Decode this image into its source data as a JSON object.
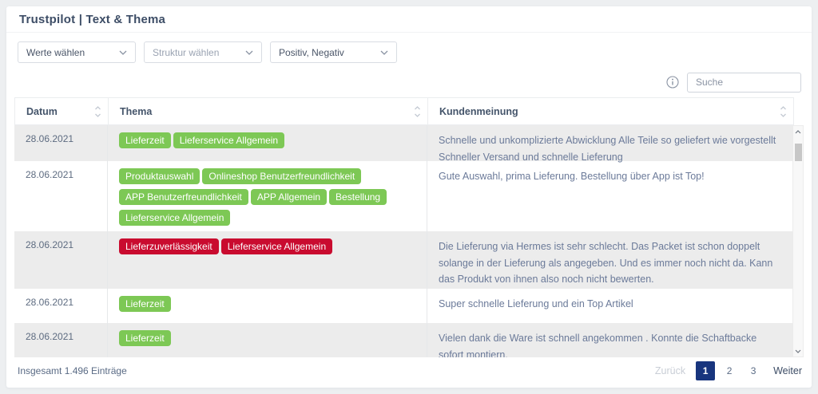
{
  "header": {
    "title": "Trustpilot | Text & Thema"
  },
  "filters": [
    {
      "label": "Werte wählen"
    },
    {
      "label": "Struktur wählen"
    },
    {
      "label": "Positiv, Negativ"
    }
  ],
  "search": {
    "placeholder": "Suche"
  },
  "table": {
    "columns": [
      {
        "label": "Datum"
      },
      {
        "label": "Thema"
      },
      {
        "label": "Kundenmeinung"
      }
    ],
    "rows": [
      {
        "date": "28.06.2021",
        "tags": [
          {
            "label": "Lieferzeit",
            "sentiment": "positive"
          },
          {
            "label": "Lieferservice Allgemein",
            "sentiment": "positive"
          }
        ],
        "opinion": "Schnelle und unkomplizierte Abwicklung Alle Teile so geliefert wie vorgestellt Schneller Versand und schnelle Lieferung",
        "striped": true
      },
      {
        "date": "28.06.2021",
        "tags": [
          {
            "label": "Produktauswahl",
            "sentiment": "positive"
          },
          {
            "label": "Onlineshop Benutzerfreundlichkeit",
            "sentiment": "positive"
          },
          {
            "label": "APP Benutzerfreundlichkeit",
            "sentiment": "positive"
          },
          {
            "label": "APP Allgemein",
            "sentiment": "positive"
          },
          {
            "label": "Bestellung",
            "sentiment": "positive"
          },
          {
            "label": "Lieferservice Allgemein",
            "sentiment": "positive"
          }
        ],
        "opinion": "Gute Auswahl, prima Lieferung. Bestellung über App ist Top!",
        "striped": false
      },
      {
        "date": "28.06.2021",
        "tags": [
          {
            "label": "Lieferzuverlässigkeit",
            "sentiment": "negative"
          },
          {
            "label": "Lieferservice Allgemein",
            "sentiment": "negative"
          }
        ],
        "opinion": "Die Lieferung via Hermes ist sehr schlecht. Das Packet ist schon doppelt solange in der Lieferung als angegeben. Und es immer noch nicht da. Kann das Produkt von ihnen also noch nicht bewerten.",
        "striped": true
      },
      {
        "date": "28.06.2021",
        "tags": [
          {
            "label": "Lieferzeit",
            "sentiment": "positive"
          }
        ],
        "opinion": "Super schnelle Lieferung und ein Top Artikel",
        "striped": false
      },
      {
        "date": "28.06.2021",
        "tags": [
          {
            "label": "Lieferzeit",
            "sentiment": "positive"
          }
        ],
        "opinion": "Vielen dank die Ware ist schnell angekommen . Konnte die Schaftbacke sofort montiern.",
        "striped": true
      }
    ]
  },
  "footer": {
    "total": "Insgesamt 1.496 Einträge",
    "pagination": {
      "prev": "Zurück",
      "pages": [
        "1",
        "2",
        "3"
      ],
      "active_page": "1",
      "next": "Weiter"
    }
  },
  "colors": {
    "positive": "#7dc855",
    "negative": "#c90b2f",
    "accent": "#18357e",
    "title": "#3d4d66"
  }
}
